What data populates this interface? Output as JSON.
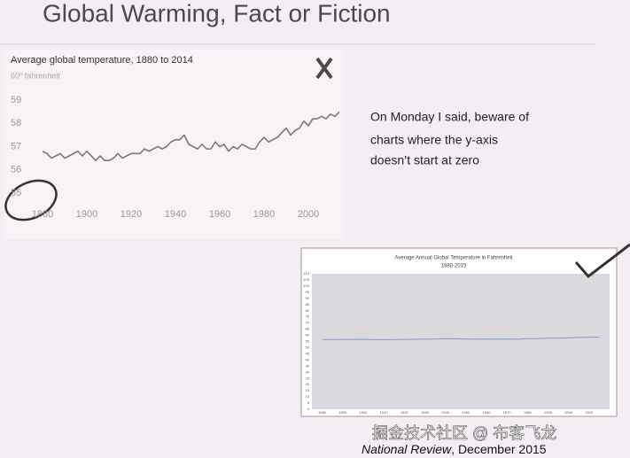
{
  "slide": {
    "title": "Global Warming, Fact or Fiction",
    "body": [
      "On Monday I said, beware of",
      "charts where the y-axis",
      "doesn’t start at zero"
    ],
    "caption_source": "National Review",
    "caption_date": ", December 2015",
    "watermark": "掘金技术社区 @ 布客飞龙"
  },
  "chart_data": [
    {
      "type": "line",
      "title": "Average global temperature, 1880 to 2014",
      "subtitle": "60º fahrenheit",
      "color": "#7a7a7a",
      "x": [
        1880,
        1882,
        1884,
        1886,
        1888,
        1890,
        1892,
        1894,
        1896,
        1898,
        1900,
        1902,
        1904,
        1906,
        1908,
        1910,
        1912,
        1914,
        1916,
        1918,
        1920,
        1922,
        1924,
        1926,
        1928,
        1930,
        1932,
        1934,
        1936,
        1938,
        1940,
        1942,
        1944,
        1946,
        1948,
        1950,
        1952,
        1954,
        1956,
        1958,
        1960,
        1962,
        1964,
        1966,
        1968,
        1970,
        1972,
        1974,
        1976,
        1978,
        1980,
        1982,
        1984,
        1986,
        1988,
        1990,
        1992,
        1994,
        1996,
        1998,
        2000,
        2002,
        2004,
        2006,
        2008,
        2010,
        2012,
        2014
      ],
      "values": [
        56.8,
        56.7,
        56.5,
        56.6,
        56.7,
        56.5,
        56.6,
        56.7,
        56.8,
        56.6,
        56.8,
        56.6,
        56.4,
        56.6,
        56.4,
        56.4,
        56.5,
        56.7,
        56.5,
        56.6,
        56.7,
        56.7,
        56.7,
        56.9,
        56.8,
        56.9,
        57.0,
        56.9,
        57.0,
        57.2,
        57.3,
        57.3,
        57.5,
        57.1,
        57.0,
        56.9,
        57.1,
        56.9,
        56.9,
        57.2,
        57.0,
        57.1,
        56.8,
        57.0,
        56.9,
        57.1,
        57.0,
        56.9,
        56.9,
        57.2,
        57.4,
        57.2,
        57.3,
        57.4,
        57.6,
        57.8,
        57.5,
        57.7,
        57.8,
        58.1,
        57.9,
        58.2,
        58.2,
        58.3,
        58.2,
        58.4,
        58.3,
        58.5
      ],
      "xlim": [
        1875,
        2015
      ],
      "ylim": [
        54.5,
        59.5
      ],
      "xticks": [
        1880,
        1900,
        1920,
        1940,
        1960,
        1980,
        2000
      ],
      "yticks": [
        55,
        56,
        57,
        58,
        59
      ],
      "grid": false
    },
    {
      "type": "line",
      "title": "Average Annual Global Temperature in Fahrenheit",
      "subtitle": "1880-2015",
      "color": "#7f98c0",
      "x": [
        1880,
        1885,
        1890,
        1895,
        1900,
        1905,
        1910,
        1915,
        1920,
        1925,
        1930,
        1935,
        1940,
        1945,
        1950,
        1955,
        1960,
        1965,
        1970,
        1975,
        1980,
        1985,
        1990,
        1995,
        2000,
        2005,
        2010,
        2015
      ],
      "values": [
        56.6,
        56.6,
        56.6,
        56.7,
        56.8,
        56.5,
        56.5,
        56.6,
        56.7,
        56.8,
        56.9,
        57.0,
        57.3,
        57.2,
        57.0,
        56.9,
        57.0,
        56.9,
        57.0,
        56.9,
        57.3,
        57.3,
        57.7,
        57.7,
        58.0,
        58.3,
        58.4,
        58.6
      ],
      "xlim": [
        1875,
        2020
      ],
      "ylim": [
        0,
        110
      ],
      "xticks": [
        1880,
        1890,
        1900,
        1910,
        1920,
        1930,
        1940,
        1950,
        1960,
        1970,
        1980,
        1990,
        2000,
        2010
      ],
      "yticks": [
        0,
        5,
        10,
        15,
        20,
        25,
        30,
        35,
        40,
        45,
        50,
        55,
        60,
        65,
        70,
        75,
        80,
        85,
        90,
        95,
        100,
        105,
        110
      ],
      "grid": false
    }
  ]
}
